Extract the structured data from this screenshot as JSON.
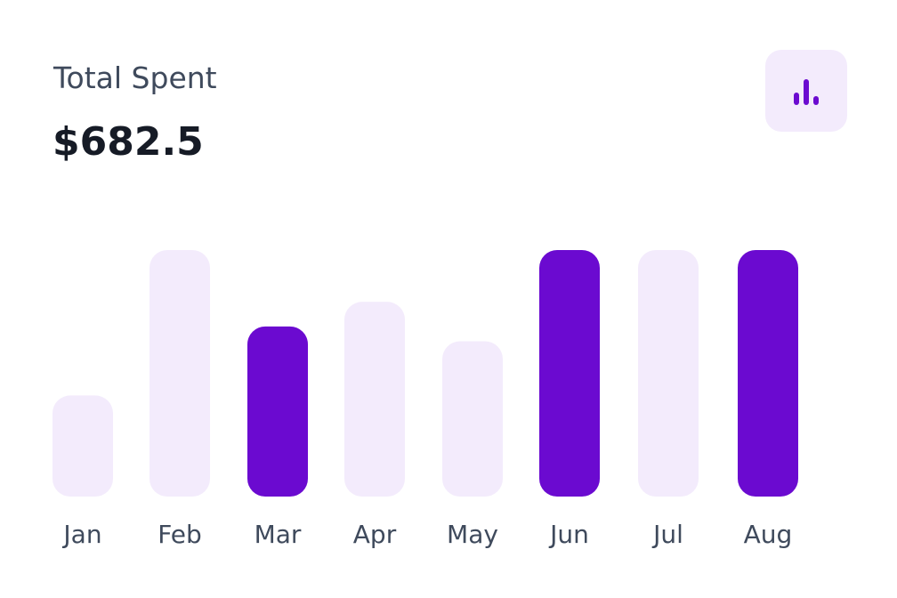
{
  "card": {
    "title": "Total Spent",
    "amount": "$682.5",
    "icon": "bar-chart-icon"
  },
  "colors": {
    "accent": "#6b0ad0",
    "muted": "#f3ebfc",
    "text_primary": "#161b26",
    "text_secondary": "#3f4a5c"
  },
  "chart_data": {
    "type": "bar",
    "categories": [
      "Jan",
      "Feb",
      "Mar",
      "Apr",
      "May",
      "Jun",
      "Jul",
      "Aug"
    ],
    "values": [
      41,
      100,
      69,
      79,
      63,
      100,
      100,
      100
    ],
    "highlighted": [
      false,
      false,
      true,
      false,
      false,
      true,
      false,
      true
    ],
    "title": "",
    "xlabel": "",
    "ylabel": "",
    "ylim": [
      0,
      100
    ],
    "grid": false
  }
}
